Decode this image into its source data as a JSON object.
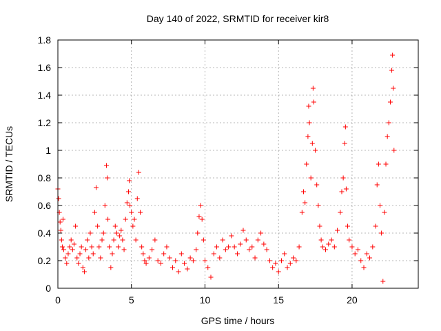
{
  "chart_data": {
    "type": "scatter",
    "title": "Day 140 of 2022, SRMTID for receiver kir8",
    "xlabel": "GPS time / hours",
    "ylabel": "SRMTID / TECUs",
    "xlim": [
      0,
      24.5
    ],
    "ylim": [
      0,
      1.8
    ],
    "xticks": [
      0,
      5,
      10,
      15,
      20
    ],
    "xtick_labels": [
      "0",
      "5",
      "10",
      "15",
      "20"
    ],
    "yticks": [
      0,
      0.2,
      0.4,
      0.6,
      0.8,
      1.0,
      1.2,
      1.4,
      1.6,
      1.8
    ],
    "ytick_labels": [
      "0",
      "0.2",
      "0.4",
      "0.6",
      "0.8",
      "1",
      "1.2",
      "1.4",
      "1.6",
      "1.8"
    ],
    "grid": true,
    "marker": "+",
    "color": "#ff0000",
    "series": [
      {
        "name": "SRMTID",
        "points": [
          [
            0.0,
            0.72
          ],
          [
            0.05,
            0.65
          ],
          [
            0.1,
            0.55
          ],
          [
            0.15,
            0.48
          ],
          [
            0.2,
            0.42
          ],
          [
            0.25,
            0.35
          ],
          [
            0.3,
            0.3
          ],
          [
            0.35,
            0.5
          ],
          [
            0.4,
            0.28
          ],
          [
            0.5,
            0.22
          ],
          [
            0.6,
            0.18
          ],
          [
            0.7,
            0.25
          ],
          [
            0.8,
            0.3
          ],
          [
            0.9,
            0.35
          ],
          [
            1.0,
            0.28
          ],
          [
            1.1,
            0.32
          ],
          [
            1.2,
            0.45
          ],
          [
            1.3,
            0.22
          ],
          [
            1.4,
            0.18
          ],
          [
            1.5,
            0.25
          ],
          [
            1.6,
            0.3
          ],
          [
            1.7,
            0.15
          ],
          [
            1.8,
            0.12
          ],
          [
            1.9,
            0.28
          ],
          [
            2.0,
            0.35
          ],
          [
            2.1,
            0.22
          ],
          [
            2.2,
            0.4
          ],
          [
            2.3,
            0.3
          ],
          [
            2.4,
            0.25
          ],
          [
            2.5,
            0.55
          ],
          [
            2.6,
            0.73
          ],
          [
            2.7,
            0.45
          ],
          [
            2.8,
            0.3
          ],
          [
            2.9,
            0.22
          ],
          [
            3.0,
            0.35
          ],
          [
            3.1,
            0.4
          ],
          [
            3.2,
            0.6
          ],
          [
            3.3,
            0.89
          ],
          [
            3.35,
            0.8
          ],
          [
            3.4,
            0.5
          ],
          [
            3.5,
            0.3
          ],
          [
            3.6,
            0.15
          ],
          [
            3.7,
            0.25
          ],
          [
            3.8,
            0.35
          ],
          [
            3.9,
            0.45
          ],
          [
            4.0,
            0.4
          ],
          [
            4.1,
            0.3
          ],
          [
            4.2,
            0.38
          ],
          [
            4.3,
            0.42
          ],
          [
            4.4,
            0.35
          ],
          [
            4.5,
            0.28
          ],
          [
            4.6,
            0.5
          ],
          [
            4.7,
            0.62
          ],
          [
            4.8,
            0.7
          ],
          [
            4.85,
            0.78
          ],
          [
            4.9,
            0.6
          ],
          [
            5.0,
            0.55
          ],
          [
            5.1,
            0.45
          ],
          [
            5.2,
            0.5
          ],
          [
            5.3,
            0.35
          ],
          [
            5.4,
            0.65
          ],
          [
            5.5,
            0.84
          ],
          [
            5.6,
            0.55
          ],
          [
            5.7,
            0.3
          ],
          [
            5.8,
            0.25
          ],
          [
            5.9,
            0.2
          ],
          [
            6.0,
            0.18
          ],
          [
            6.2,
            0.22
          ],
          [
            6.4,
            0.28
          ],
          [
            6.6,
            0.35
          ],
          [
            6.8,
            0.2
          ],
          [
            7.0,
            0.18
          ],
          [
            7.2,
            0.25
          ],
          [
            7.4,
            0.3
          ],
          [
            7.6,
            0.22
          ],
          [
            7.8,
            0.15
          ],
          [
            8.0,
            0.2
          ],
          [
            8.2,
            0.12
          ],
          [
            8.4,
            0.25
          ],
          [
            8.6,
            0.18
          ],
          [
            8.8,
            0.14
          ],
          [
            9.0,
            0.22
          ],
          [
            9.2,
            0.2
          ],
          [
            9.4,
            0.28
          ],
          [
            9.5,
            0.4
          ],
          [
            9.6,
            0.52
          ],
          [
            9.7,
            0.6
          ],
          [
            9.8,
            0.5
          ],
          [
            9.9,
            0.35
          ],
          [
            10.0,
            0.2
          ],
          [
            10.2,
            0.15
          ],
          [
            10.4,
            0.08
          ],
          [
            10.6,
            0.25
          ],
          [
            10.8,
            0.3
          ],
          [
            11.0,
            0.22
          ],
          [
            11.2,
            0.35
          ],
          [
            11.4,
            0.28
          ],
          [
            11.6,
            0.3
          ],
          [
            11.8,
            0.38
          ],
          [
            12.0,
            0.3
          ],
          [
            12.2,
            0.25
          ],
          [
            12.4,
            0.32
          ],
          [
            12.6,
            0.42
          ],
          [
            12.8,
            0.35
          ],
          [
            13.0,
            0.28
          ],
          [
            13.2,
            0.3
          ],
          [
            13.4,
            0.22
          ],
          [
            13.6,
            0.35
          ],
          [
            13.8,
            0.4
          ],
          [
            14.0,
            0.32
          ],
          [
            14.2,
            0.28
          ],
          [
            14.4,
            0.2
          ],
          [
            14.6,
            0.15
          ],
          [
            14.8,
            0.18
          ],
          [
            15.0,
            0.12
          ],
          [
            15.2,
            0.2
          ],
          [
            15.4,
            0.25
          ],
          [
            15.6,
            0.15
          ],
          [
            15.8,
            0.18
          ],
          [
            16.0,
            0.22
          ],
          [
            16.2,
            0.2
          ],
          [
            16.4,
            0.3
          ],
          [
            16.6,
            0.55
          ],
          [
            16.7,
            0.7
          ],
          [
            16.8,
            0.62
          ],
          [
            16.9,
            0.9
          ],
          [
            17.0,
            1.1
          ],
          [
            17.05,
            1.32
          ],
          [
            17.1,
            1.2
          ],
          [
            17.2,
            0.8
          ],
          [
            17.3,
            1.05
          ],
          [
            17.35,
            1.45
          ],
          [
            17.4,
            1.35
          ],
          [
            17.5,
            1.0
          ],
          [
            17.6,
            0.75
          ],
          [
            17.7,
            0.6
          ],
          [
            17.8,
            0.45
          ],
          [
            17.9,
            0.35
          ],
          [
            18.0,
            0.3
          ],
          [
            18.2,
            0.28
          ],
          [
            18.4,
            0.32
          ],
          [
            18.6,
            0.35
          ],
          [
            18.8,
            0.3
          ],
          [
            19.0,
            0.42
          ],
          [
            19.2,
            0.55
          ],
          [
            19.3,
            0.7
          ],
          [
            19.4,
            0.8
          ],
          [
            19.5,
            1.05
          ],
          [
            19.55,
            1.17
          ],
          [
            19.6,
            0.72
          ],
          [
            19.7,
            0.45
          ],
          [
            19.8,
            0.35
          ],
          [
            20.0,
            0.3
          ],
          [
            20.2,
            0.25
          ],
          [
            20.4,
            0.28
          ],
          [
            20.6,
            0.2
          ],
          [
            20.8,
            0.15
          ],
          [
            21.0,
            0.25
          ],
          [
            21.2,
            0.22
          ],
          [
            21.4,
            0.3
          ],
          [
            21.6,
            0.45
          ],
          [
            21.7,
            0.75
          ],
          [
            21.8,
            0.9
          ],
          [
            21.9,
            0.6
          ],
          [
            22.0,
            0.4
          ],
          [
            22.1,
            0.05
          ],
          [
            22.2,
            0.55
          ],
          [
            22.3,
            0.9
          ],
          [
            22.4,
            1.1
          ],
          [
            22.5,
            1.2
          ],
          [
            22.6,
            1.35
          ],
          [
            22.7,
            1.58
          ],
          [
            22.75,
            1.69
          ],
          [
            22.8,
            1.45
          ],
          [
            22.85,
            1.0
          ]
        ]
      }
    ]
  }
}
